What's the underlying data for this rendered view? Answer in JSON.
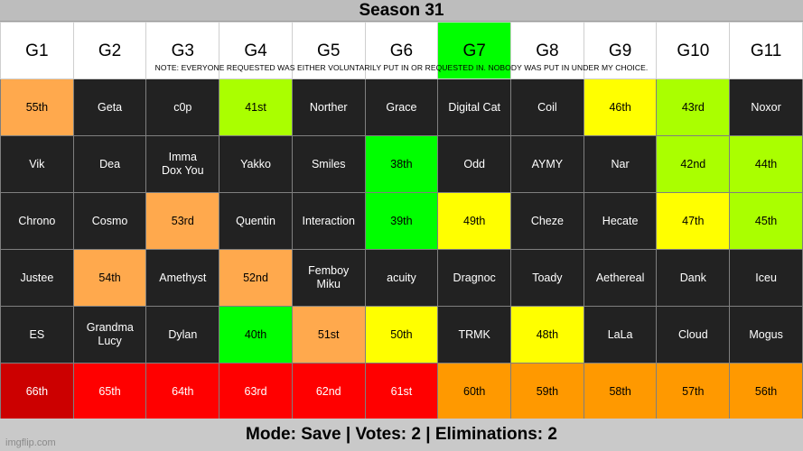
{
  "title": "Season 31",
  "note": "NOTE: EVERYONE REQUESTED WAS EITHER VOLUNTARILY PUT IN OR REQUESTED IN. NOBODY WAS PUT IN UNDER MY CHOICE.",
  "columns": [
    {
      "label": "G1",
      "color": "#ffffff"
    },
    {
      "label": "G2",
      "color": "#ffffff"
    },
    {
      "label": "G3",
      "color": "#ffffff"
    },
    {
      "label": "G4",
      "color": "#ffffff"
    },
    {
      "label": "G5",
      "color": "#ffffff"
    },
    {
      "label": "G6",
      "color": "#ffffff"
    },
    {
      "label": "G7",
      "color": "#00ff00"
    },
    {
      "label": "G8",
      "color": "#ffffff"
    },
    {
      "label": "G9",
      "color": "#ffffff"
    },
    {
      "label": "G10",
      "color": "#ffffff"
    },
    {
      "label": "G11",
      "color": "#ffffff"
    }
  ],
  "rows": [
    [
      {
        "text": "55th",
        "bg": "#ffa94d",
        "fg": "#000000"
      },
      {
        "text": "Geta",
        "bg": "#222222",
        "fg": "#ffffff"
      },
      {
        "text": "c0p",
        "bg": "#222222",
        "fg": "#ffffff"
      },
      {
        "text": "41st",
        "bg": "#aaff00",
        "fg": "#000000"
      },
      {
        "text": "Norther",
        "bg": "#222222",
        "fg": "#ffffff"
      },
      {
        "text": "Grace",
        "bg": "#222222",
        "fg": "#ffffff"
      },
      {
        "text": "Digital Cat",
        "bg": "#222222",
        "fg": "#ffffff"
      },
      {
        "text": "Coil",
        "bg": "#222222",
        "fg": "#ffffff"
      },
      {
        "text": "46th",
        "bg": "#ffff00",
        "fg": "#000000"
      },
      {
        "text": "43rd",
        "bg": "#aaff00",
        "fg": "#000000"
      },
      {
        "text": "Noxor",
        "bg": "#222222",
        "fg": "#ffffff"
      }
    ],
    [
      {
        "text": "Vik",
        "bg": "#222222",
        "fg": "#ffffff"
      },
      {
        "text": "Dea",
        "bg": "#222222",
        "fg": "#ffffff"
      },
      {
        "text": "Imma Dox You",
        "bg": "#222222",
        "fg": "#ffffff",
        "narrow": true
      },
      {
        "text": "Yakko",
        "bg": "#222222",
        "fg": "#ffffff"
      },
      {
        "text": "Smiles",
        "bg": "#222222",
        "fg": "#ffffff"
      },
      {
        "text": "38th",
        "bg": "#00ff00",
        "fg": "#000000"
      },
      {
        "text": "Odd",
        "bg": "#222222",
        "fg": "#ffffff"
      },
      {
        "text": "AYMY",
        "bg": "#222222",
        "fg": "#ffffff"
      },
      {
        "text": "Nar",
        "bg": "#222222",
        "fg": "#ffffff"
      },
      {
        "text": "42nd",
        "bg": "#aaff00",
        "fg": "#000000"
      },
      {
        "text": "44th",
        "bg": "#aaff00",
        "fg": "#000000"
      }
    ],
    [
      {
        "text": "Chrono",
        "bg": "#222222",
        "fg": "#ffffff"
      },
      {
        "text": "Cosmo",
        "bg": "#222222",
        "fg": "#ffffff"
      },
      {
        "text": "53rd",
        "bg": "#ffa94d",
        "fg": "#000000"
      },
      {
        "text": "Quentin",
        "bg": "#222222",
        "fg": "#ffffff"
      },
      {
        "text": "Interaction",
        "bg": "#222222",
        "fg": "#ffffff"
      },
      {
        "text": "39th",
        "bg": "#00ff00",
        "fg": "#000000"
      },
      {
        "text": "49th",
        "bg": "#ffff00",
        "fg": "#000000"
      },
      {
        "text": "Cheze",
        "bg": "#222222",
        "fg": "#ffffff"
      },
      {
        "text": "Hecate",
        "bg": "#222222",
        "fg": "#ffffff"
      },
      {
        "text": "47th",
        "bg": "#ffff00",
        "fg": "#000000"
      },
      {
        "text": "45th",
        "bg": "#aaff00",
        "fg": "#000000"
      }
    ],
    [
      {
        "text": "Justee",
        "bg": "#222222",
        "fg": "#ffffff"
      },
      {
        "text": "54th",
        "bg": "#ffa94d",
        "fg": "#000000"
      },
      {
        "text": "Amethyst",
        "bg": "#222222",
        "fg": "#ffffff"
      },
      {
        "text": "52nd",
        "bg": "#ffa94d",
        "fg": "#000000"
      },
      {
        "text": "Femboy Miku",
        "bg": "#222222",
        "fg": "#ffffff",
        "narrow": true
      },
      {
        "text": "acuity",
        "bg": "#222222",
        "fg": "#ffffff"
      },
      {
        "text": "Dragnoc",
        "bg": "#222222",
        "fg": "#ffffff"
      },
      {
        "text": "Toady",
        "bg": "#222222",
        "fg": "#ffffff"
      },
      {
        "text": "Aethereal",
        "bg": "#222222",
        "fg": "#ffffff"
      },
      {
        "text": "Dank",
        "bg": "#222222",
        "fg": "#ffffff"
      },
      {
        "text": "Iceu",
        "bg": "#222222",
        "fg": "#ffffff"
      }
    ],
    [
      {
        "text": "ES",
        "bg": "#222222",
        "fg": "#ffffff"
      },
      {
        "text": "Grandma Lucy",
        "bg": "#222222",
        "fg": "#ffffff",
        "narrow": true
      },
      {
        "text": "Dylan",
        "bg": "#222222",
        "fg": "#ffffff"
      },
      {
        "text": "40th",
        "bg": "#00ff00",
        "fg": "#000000"
      },
      {
        "text": "51st",
        "bg": "#ffa94d",
        "fg": "#000000"
      },
      {
        "text": "50th",
        "bg": "#ffff00",
        "fg": "#000000"
      },
      {
        "text": "TRMK",
        "bg": "#222222",
        "fg": "#ffffff"
      },
      {
        "text": "48th",
        "bg": "#ffff00",
        "fg": "#000000"
      },
      {
        "text": "LaLa",
        "bg": "#222222",
        "fg": "#ffffff"
      },
      {
        "text": "Cloud",
        "bg": "#222222",
        "fg": "#ffffff"
      },
      {
        "text": "Mogus",
        "bg": "#222222",
        "fg": "#ffffff"
      }
    ],
    [
      {
        "text": "66th",
        "bg": "#cc0000",
        "fg": "#ffffff"
      },
      {
        "text": "65th",
        "bg": "#ff0000",
        "fg": "#ffffff"
      },
      {
        "text": "64th",
        "bg": "#ff0000",
        "fg": "#ffffff"
      },
      {
        "text": "63rd",
        "bg": "#ff0000",
        "fg": "#ffffff"
      },
      {
        "text": "62nd",
        "bg": "#ff0000",
        "fg": "#ffffff"
      },
      {
        "text": "61st",
        "bg": "#ff0000",
        "fg": "#ffffff"
      },
      {
        "text": "60th",
        "bg": "#ff9900",
        "fg": "#000000"
      },
      {
        "text": "59th",
        "bg": "#ff9900",
        "fg": "#000000"
      },
      {
        "text": "58th",
        "bg": "#ff9900",
        "fg": "#000000"
      },
      {
        "text": "57th",
        "bg": "#ff9900",
        "fg": "#000000"
      },
      {
        "text": "56th",
        "bg": "#ff9900",
        "fg": "#000000"
      }
    ]
  ],
  "footer": "Mode: Save | Votes: 2 | Eliminations: 2",
  "watermark": "imgflip.com"
}
